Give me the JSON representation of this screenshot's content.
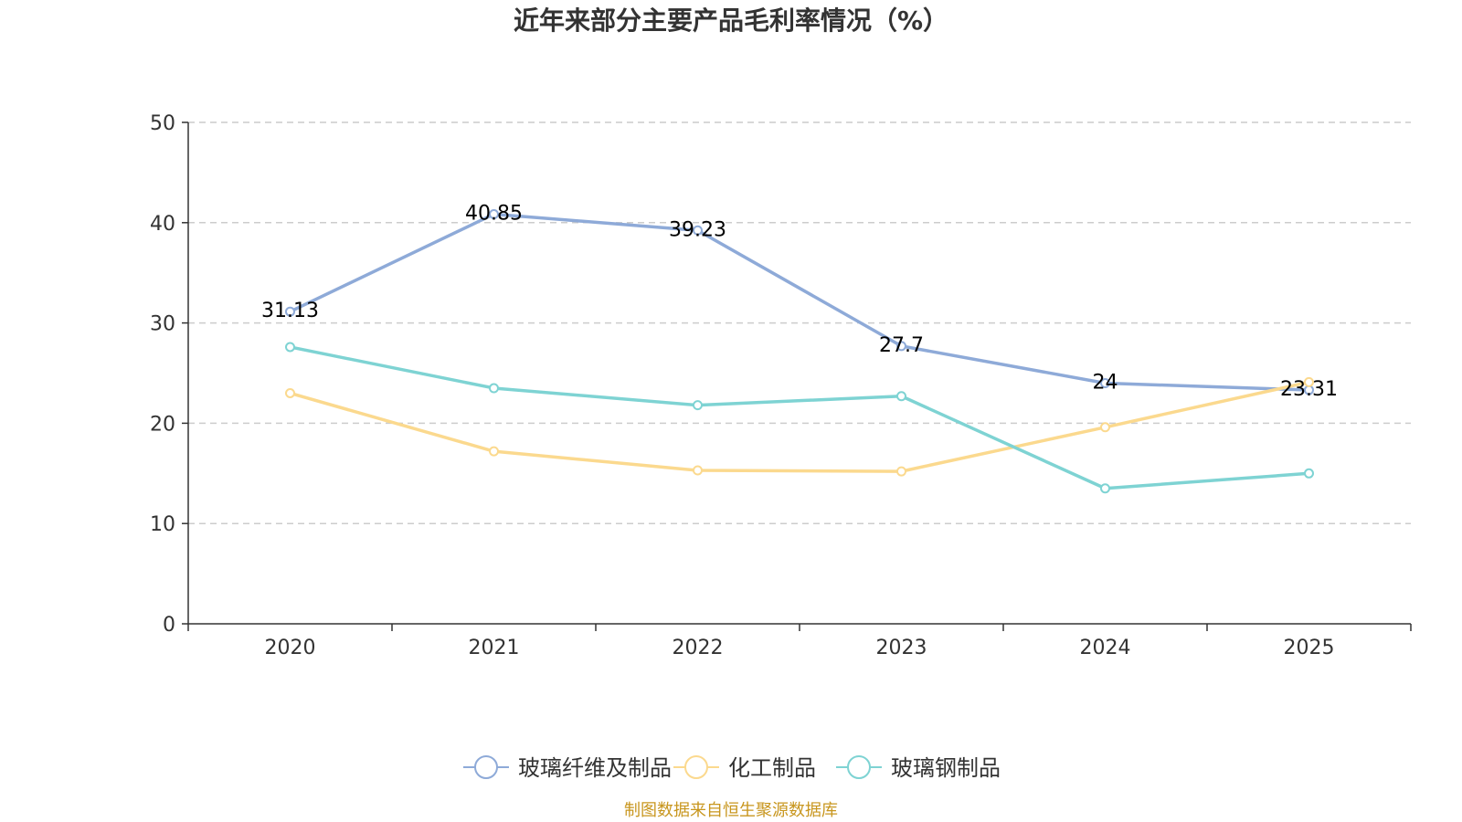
{
  "chart_data": {
    "type": "line",
    "title": "近年来部分主要产品毛利率情况（%）",
    "categories": [
      "2020",
      "2021",
      "2022",
      "2023",
      "2024",
      "2025"
    ],
    "ylim": [
      0,
      50
    ],
    "yticks": [
      0,
      10,
      20,
      30,
      40,
      50
    ],
    "grid": true,
    "legend_position": "bottom",
    "series": [
      {
        "name": "玻璃纤维及制品",
        "color": "#8eaad8",
        "values": [
          31.13,
          40.85,
          39.23,
          27.7,
          24,
          23.31
        ],
        "labels": [
          "31.13",
          "40.85",
          "39.23",
          "27.7",
          "24",
          "23.31"
        ]
      },
      {
        "name": "化工制品",
        "color": "#fbd98e",
        "values": [
          23.0,
          17.2,
          15.3,
          15.2,
          19.6,
          24.1
        ]
      },
      {
        "name": "玻璃钢制品",
        "color": "#7ed3d3",
        "values": [
          27.6,
          23.5,
          21.8,
          22.7,
          13.5,
          15.0
        ]
      }
    ],
    "source_note": "制图数据来自恒生聚源数据库",
    "source_color": "#c8961e"
  }
}
